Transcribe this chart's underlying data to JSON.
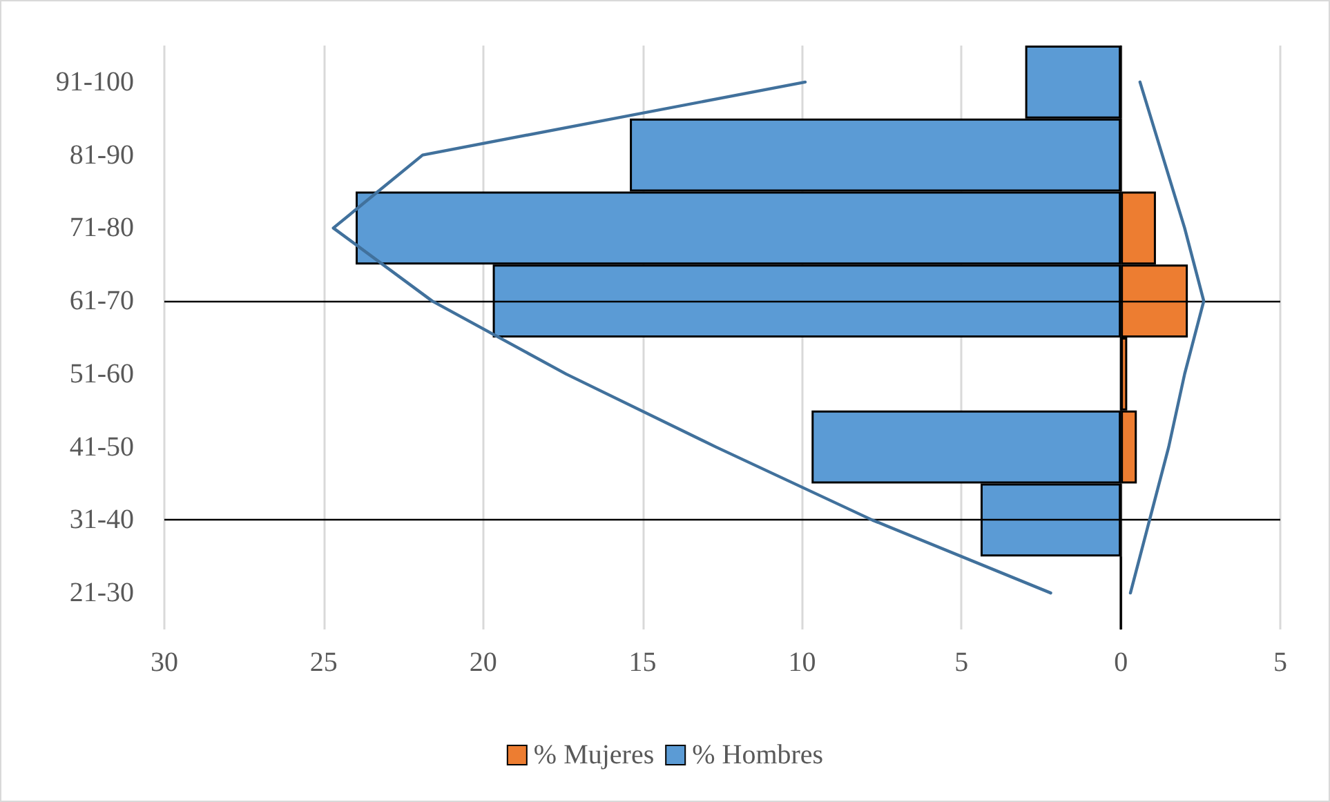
{
  "chart_data": {
    "type": "bar",
    "orientation": "horizontal",
    "categories": [
      "91-100",
      "81-90",
      "71-80",
      "61-70",
      "51-60",
      "41-50",
      "31-40",
      "21-30"
    ],
    "series": [
      {
        "name": "% Mujeres",
        "color": "#ed7d31",
        "values": [
          0,
          0,
          1.1,
          2.1,
          0.2,
          0.5,
          0,
          0
        ]
      },
      {
        "name": "% Hombres",
        "color": "#5b9bd5",
        "values": [
          -3.0,
          -15.4,
          -24.0,
          -19.7,
          0,
          -9.7,
          -4.4,
          0
        ]
      },
      {
        "type": "line",
        "color": "#41719c",
        "values": [
          -9.9,
          -21.9,
          -24.7,
          -21.6,
          -17.4,
          -12.7,
          -7.8,
          -2.2
        ]
      },
      {
        "type": "line",
        "color": "#41719c",
        "values": [
          0.6,
          1.3,
          2.0,
          2.6,
          2.0,
          1.5,
          0.9,
          0.3
        ]
      }
    ],
    "xlim": [
      -30,
      5
    ],
    "xticks": [
      {
        "value": -30,
        "label": "30"
      },
      {
        "value": -25,
        "label": "25"
      },
      {
        "value": -20,
        "label": "20"
      },
      {
        "value": -15,
        "label": "15"
      },
      {
        "value": -10,
        "label": "10"
      },
      {
        "value": -5,
        "label": "5"
      },
      0,
      5
    ],
    "ref_lines": [
      {
        "axis": "y",
        "value": "61-70",
        "color": "#000000"
      },
      {
        "axis": "y",
        "value": "31-40",
        "color": "#000000"
      }
    ],
    "marker": "none",
    "grid": "x",
    "legend": "bottom"
  }
}
